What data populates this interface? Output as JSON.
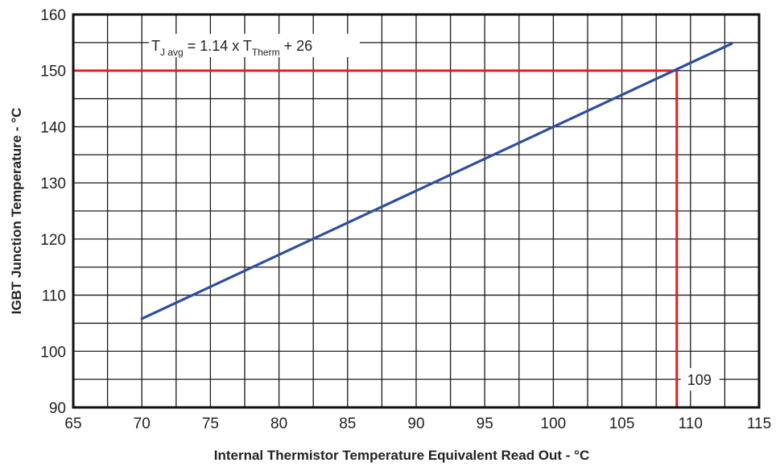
{
  "chart_data": {
    "type": "line",
    "title": "",
    "xlabel": "Internal Thermistor Temperature Equivalent Read Out - °C",
    "ylabel": "IGBT  Junction Temperature - °C",
    "xlim": [
      65,
      115
    ],
    "ylim": [
      90,
      160
    ],
    "x_ticks": [
      65,
      70,
      75,
      80,
      85,
      90,
      95,
      100,
      105,
      110,
      115
    ],
    "y_ticks": [
      90,
      100,
      110,
      120,
      130,
      140,
      150,
      160
    ],
    "x_minor_step": 2.5,
    "y_minor_step": 5,
    "grid": true,
    "series": [
      {
        "x": [
          70,
          113
        ],
        "y": [
          105.8,
          154.8
        ],
        "color": "#2d4f9e"
      }
    ],
    "reference_lines": [
      {
        "orientation": "horizontal",
        "y": 150,
        "x_from": 65,
        "x_to": 109,
        "color": "#e31e24"
      },
      {
        "orientation": "vertical",
        "x": 109,
        "y_from": 90,
        "y_to": 150,
        "color": "#e31e24"
      }
    ],
    "annotations": {
      "equation": {
        "parts": [
          {
            "text": "T",
            "sub": false
          },
          {
            "text": "J avg",
            "sub": true
          },
          {
            "text": " = 1.14 x T",
            "sub": false
          },
          {
            "text": "Therm",
            "sub": true
          },
          {
            "text": " + 26",
            "sub": false
          }
        ]
      },
      "x_value_label": "109"
    }
  }
}
